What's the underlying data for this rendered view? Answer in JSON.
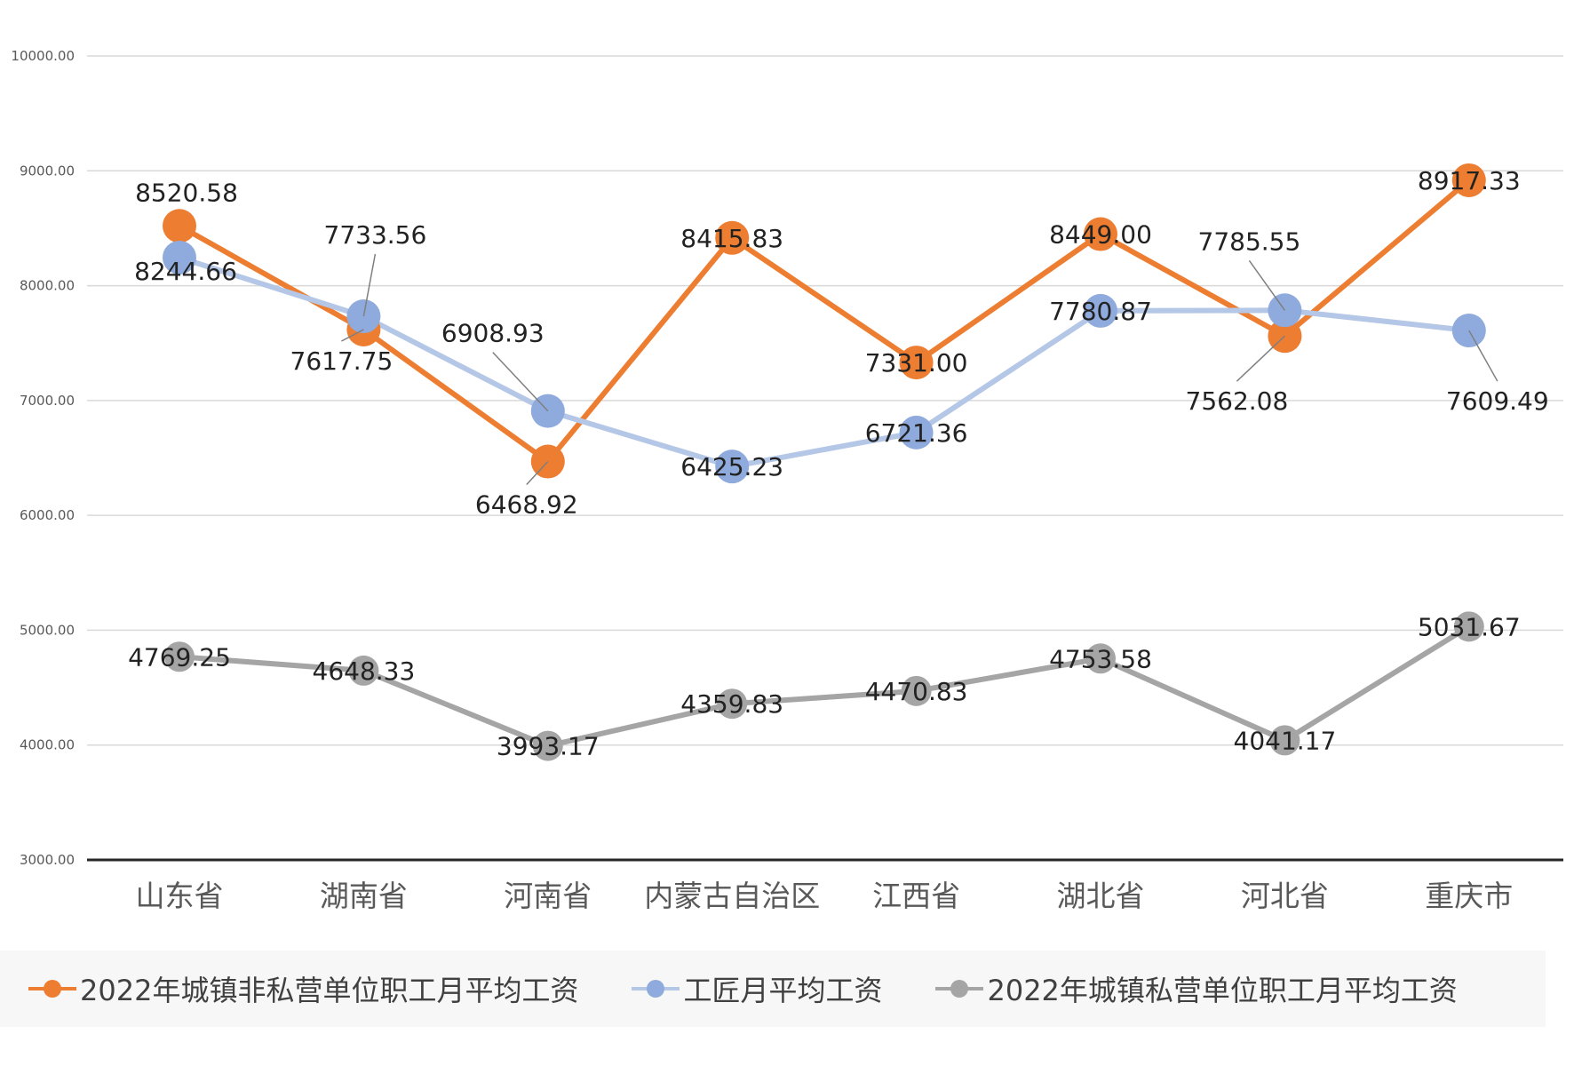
{
  "chart_data": {
    "type": "line",
    "categories": [
      "山东省",
      "湖南省",
      "河南省",
      "内蒙古自治区",
      "江西省",
      "湖北省",
      "河北省",
      "重庆市"
    ],
    "ylim": [
      3000,
      10000
    ],
    "yticks": [
      "3000.00",
      "4000.00",
      "5000.00",
      "6000.00",
      "7000.00",
      "8000.00",
      "9000.00",
      "10000.00"
    ],
    "grid": true,
    "legend_position": "bottom",
    "series": [
      {
        "name": "2022年城镇非私营单位职工月平均工资",
        "color": "#ED7D31",
        "values": [
          8520.58,
          7617.75,
          6468.92,
          8415.83,
          7331.0,
          8449.0,
          7562.08,
          8917.33
        ],
        "labels": [
          "8520.58",
          "7617.75",
          "6468.92",
          "8415.83",
          "7331.00",
          "8449.00",
          "7562.08",
          "8917.33"
        ]
      },
      {
        "name": "工匠月平均工资",
        "color": "#8FAADC",
        "line_color": "#B4C7E7",
        "values": [
          8244.66,
          7733.56,
          6908.93,
          6425.23,
          6721.36,
          7780.87,
          7785.55,
          7609.49
        ],
        "labels": [
          "8244.66",
          "7733.56",
          "6908.93",
          "6425.23",
          "6721.36",
          "7780.87",
          "7785.55",
          "7609.49"
        ]
      },
      {
        "name": "2022年城镇私营单位职工月平均工资",
        "color": "#A5A5A5",
        "values": [
          4769.25,
          4648.33,
          3993.17,
          4359.83,
          4470.83,
          4753.58,
          4041.17,
          5031.67
        ],
        "labels": [
          "4769.25",
          "4648.33",
          "3993.17",
          "4359.83",
          "4470.83",
          "4753.58",
          "4041.17",
          "5031.67"
        ]
      }
    ]
  }
}
